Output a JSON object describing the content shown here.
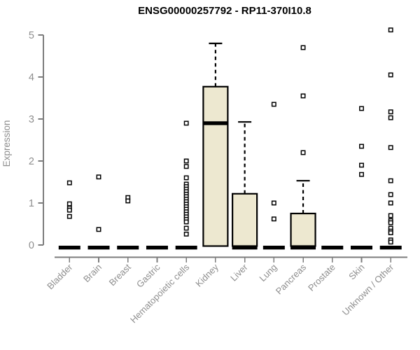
{
  "chart_data": {
    "type": "boxplot",
    "title": "ENSG00000257792 - RP11-370I10.8",
    "ylabel": "Expression",
    "xlabel": "",
    "ylim": [
      0,
      5
    ],
    "yticks": [
      "0",
      "1",
      "2",
      "3",
      "4",
      "5"
    ],
    "grid": false,
    "legend": false,
    "colors": {
      "box_fill": "#EDE8D0",
      "box_stroke": "#000000",
      "median": "#000000",
      "outlier_stroke": "#000000",
      "outlier_fill": "#ffffff",
      "axis": "#7d7d7d",
      "tick_label": "#8e8e8e",
      "title": "#000000"
    },
    "categories": [
      "Bladder",
      "Brain",
      "Breast",
      "Gastric",
      "Hematopoietic cells",
      "Kidney",
      "Liver",
      "Lung",
      "Pancreas",
      "Prostate",
      "Skin",
      "Unknown / Other"
    ],
    "series": [
      {
        "category": "Bladder",
        "q1": 0,
        "median": 0,
        "q3": 0,
        "whisker_low": 0,
        "whisker_high": 0,
        "outliers": [
          1.48,
          0.98,
          0.88,
          0.83,
          0.68
        ]
      },
      {
        "category": "Brain",
        "q1": 0,
        "median": 0,
        "q3": 0,
        "whisker_low": 0,
        "whisker_high": 0,
        "outliers": [
          1.62,
          0.37
        ]
      },
      {
        "category": "Breast",
        "q1": 0,
        "median": 0,
        "q3": 0,
        "whisker_low": 0,
        "whisker_high": 0,
        "outliers": [
          1.13,
          1.05
        ]
      },
      {
        "category": "Gastric",
        "q1": 0,
        "median": 0,
        "q3": 0,
        "whisker_low": 0,
        "whisker_high": 0,
        "outliers": []
      },
      {
        "category": "Hematopoietic cells",
        "q1": 0,
        "median": 0,
        "q3": 0,
        "whisker_low": 0,
        "whisker_high": 0,
        "outliers": [
          2.9,
          2.0,
          1.87,
          1.6,
          1.45,
          1.39,
          1.33,
          1.27,
          1.21,
          1.15,
          1.09,
          1.03,
          0.97,
          0.91,
          0.85,
          0.79,
          0.73,
          0.67,
          0.61,
          0.55,
          0.4,
          0.26
        ]
      },
      {
        "category": "Kidney",
        "q1": 0,
        "median": 2.9,
        "q3": 3.77,
        "whisker_low": 0,
        "whisker_high": 4.8,
        "outliers": []
      },
      {
        "category": "Liver",
        "q1": 0,
        "median": 0,
        "q3": 1.22,
        "whisker_low": 0,
        "whisker_high": 2.93,
        "outliers": []
      },
      {
        "category": "Lung",
        "q1": 0,
        "median": 0,
        "q3": 0,
        "whisker_low": 0,
        "whisker_high": 0,
        "outliers": [
          3.35,
          1.0,
          0.62
        ]
      },
      {
        "category": "Pancreas",
        "q1": 0,
        "median": 0,
        "q3": 0.75,
        "whisker_low": 0,
        "whisker_high": 1.53,
        "outliers": [
          4.7,
          3.55,
          2.2
        ]
      },
      {
        "category": "Prostate",
        "q1": 0,
        "median": 0,
        "q3": 0,
        "whisker_low": 0,
        "whisker_high": 0,
        "outliers": []
      },
      {
        "category": "Skin",
        "q1": 0,
        "median": 0,
        "q3": 0,
        "whisker_low": 0,
        "whisker_high": 0,
        "outliers": [
          3.25,
          2.35,
          1.9,
          1.68
        ]
      },
      {
        "category": "Unknown / Other",
        "q1": 0,
        "median": 0,
        "q3": 0,
        "whisker_low": 0,
        "whisker_high": 0,
        "outliers": [
          5.12,
          4.05,
          3.17,
          3.03,
          2.32,
          1.53,
          1.2,
          1.0,
          0.7,
          0.58,
          0.53,
          0.4,
          0.33,
          0.29,
          0.12,
          0.07
        ]
      }
    ]
  }
}
